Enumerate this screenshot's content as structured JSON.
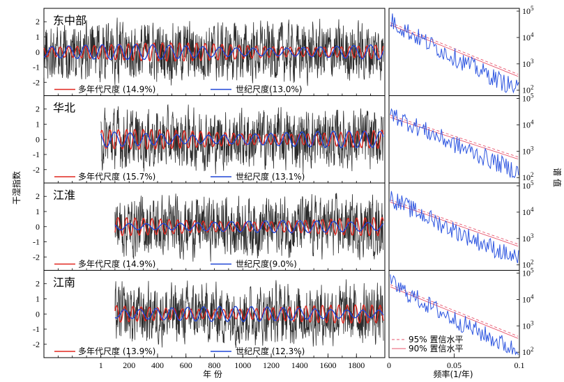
{
  "chart_data": {
    "type": "line",
    "y_axis_label": "干湿指数",
    "x_axis_label": "年 份",
    "freq_axis_label": "频率(1/年)",
    "power_axis_label": "谱 值",
    "time_xlim": [
      -400,
      2000
    ],
    "time_ticks": [
      "1",
      "200",
      "400",
      "600",
      "800",
      "1000",
      "1200",
      "1400",
      "1600",
      "1800"
    ],
    "time_ylim": [
      -2.7,
      2.7
    ],
    "time_yticks": [
      "2",
      "1",
      "0",
      "-1",
      "-2"
    ],
    "freq_xlim": [
      0,
      0.1
    ],
    "freq_ticks": [
      "0",
      "0.05",
      "0.1"
    ],
    "power_ylim_log10": [
      1.9,
      5
    ],
    "power_ticks": [
      {
        "base": "10",
        "exp": "5"
      },
      {
        "base": "10",
        "exp": "4"
      },
      {
        "base": "10",
        "exp": "3"
      },
      {
        "base": "10",
        "exp": "2"
      }
    ],
    "colors": {
      "index": "#2b2b2b",
      "multidecadal": "#e0261f",
      "centennial": "#1f45d6",
      "spectrum": "#2d55e0",
      "conf95": "#e8566e",
      "conf90": "#e8566e"
    },
    "confidence_legend": [
      {
        "label": "95% 置信水平",
        "style": "dashed"
      },
      {
        "label": "90% 置信水平",
        "style": "solid"
      }
    ],
    "panels": [
      {
        "region": "东中部",
        "start_year": -400,
        "multidecadal": {
          "label": "多年代尺度 (14.9%)",
          "period": 60,
          "amplitude": 0.6
        },
        "centennial": {
          "label": "世纪尺度(13.0%)",
          "period": 118,
          "amplitude": 0.5
        },
        "spectrum_start_log10": 4.7,
        "spectrum_end_log10": 2.0
      },
      {
        "region": "华北",
        "start_year": 1,
        "multidecadal": {
          "label": "多年代尺度 (15.7%)",
          "period": 58,
          "amplitude": 0.65
        },
        "centennial": {
          "label": "世纪尺度 (13.1%)",
          "period": 110,
          "amplitude": 0.55
        },
        "spectrum_start_log10": 4.5,
        "spectrum_end_log10": 2.2
      },
      {
        "region": "江淮",
        "start_year": 100,
        "multidecadal": {
          "label": "多年代尺度 (14.9%)",
          "period": 60,
          "amplitude": 0.6
        },
        "centennial": {
          "label": "世纪尺度(9.0%)",
          "period": 120,
          "amplitude": 0.4
        },
        "spectrum_start_log10": 4.6,
        "spectrum_end_log10": 2.2
      },
      {
        "region": "江南",
        "start_year": 100,
        "multidecadal": {
          "label": "多年代尺度 (13.9%)",
          "period": 58,
          "amplitude": 0.6
        },
        "centennial": {
          "label": "世纪尺度 (12.3%)",
          "period": 112,
          "amplitude": 0.5
        },
        "spectrum_start_log10": 4.7,
        "spectrum_end_log10": 2.0
      }
    ]
  }
}
